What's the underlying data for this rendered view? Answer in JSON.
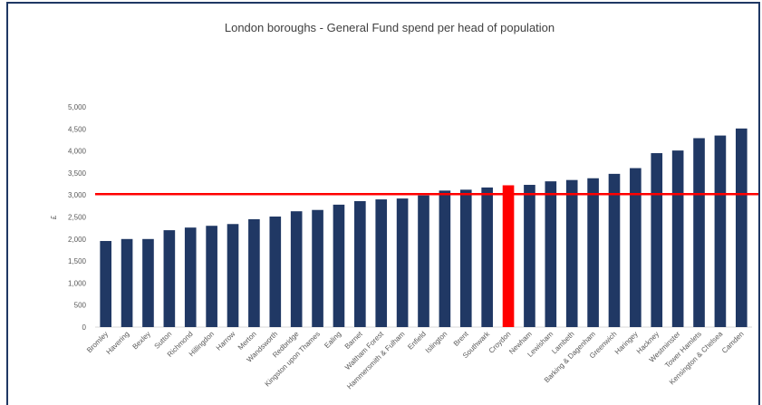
{
  "chart_data": {
    "type": "bar",
    "title": "London boroughs - General Fund spend per head of population",
    "y_label": "£",
    "categories": [
      "Bromley",
      "Havering",
      "Bexley",
      "Sutton",
      "Richmond",
      "Hillingdon",
      "Harrow",
      "Merton",
      "Wandsworth",
      "Redbridge",
      "Kingston upon Thames",
      "Ealing",
      "Barnet",
      "Waltham Forest",
      "Hammersmith & Fulham",
      "Enfield",
      "Islington",
      "Brent",
      "Southwark",
      "Croydon",
      "Newham",
      "Lewisham",
      "Lambeth",
      "Barking & Dagenham",
      "Greenwich",
      "Haringey",
      "Hackney",
      "Westminster",
      "Tower Hamlets",
      "Kensington & Chelsea",
      "Camden"
    ],
    "values": [
      1955,
      2000,
      2000,
      2200,
      2260,
      2300,
      2340,
      2450,
      2510,
      2630,
      2660,
      2780,
      2860,
      2900,
      2920,
      2990,
      3100,
      3120,
      3170,
      3220,
      3230,
      3310,
      3340,
      3380,
      3480,
      3610,
      3950,
      4010,
      4290,
      4350,
      4510
    ],
    "colors": [
      "#203864",
      "#203864",
      "#203864",
      "#203864",
      "#203864",
      "#203864",
      "#203864",
      "#203864",
      "#203864",
      "#203864",
      "#203864",
      "#203864",
      "#203864",
      "#203864",
      "#203864",
      "#203864",
      "#203864",
      "#203864",
      "#203864",
      "#ff0000",
      "#203864",
      "#203864",
      "#203864",
      "#203864",
      "#203864",
      "#203864",
      "#203864",
      "#203864",
      "#203864",
      "#203864",
      "#203864"
    ],
    "reference_line": {
      "value": 3020,
      "color": "#ff0000"
    },
    "ylim": [
      0,
      5000
    ],
    "yticks": [
      0,
      500,
      {
        "value": 1000,
        "label": "1,000"
      },
      {
        "value": 1500,
        "label": "1,500"
      },
      {
        "value": 2000,
        "label": "2,000"
      },
      {
        "value": 2500,
        "label": "2,500"
      },
      {
        "value": 3000,
        "label": "3,000"
      },
      {
        "value": 3500,
        "label": "3,500"
      },
      {
        "value": 4000,
        "label": "4,000"
      },
      {
        "value": 4500,
        "label": "4,500"
      },
      {
        "value": 5000,
        "label": "5,000"
      }
    ],
    "grid": false
  }
}
